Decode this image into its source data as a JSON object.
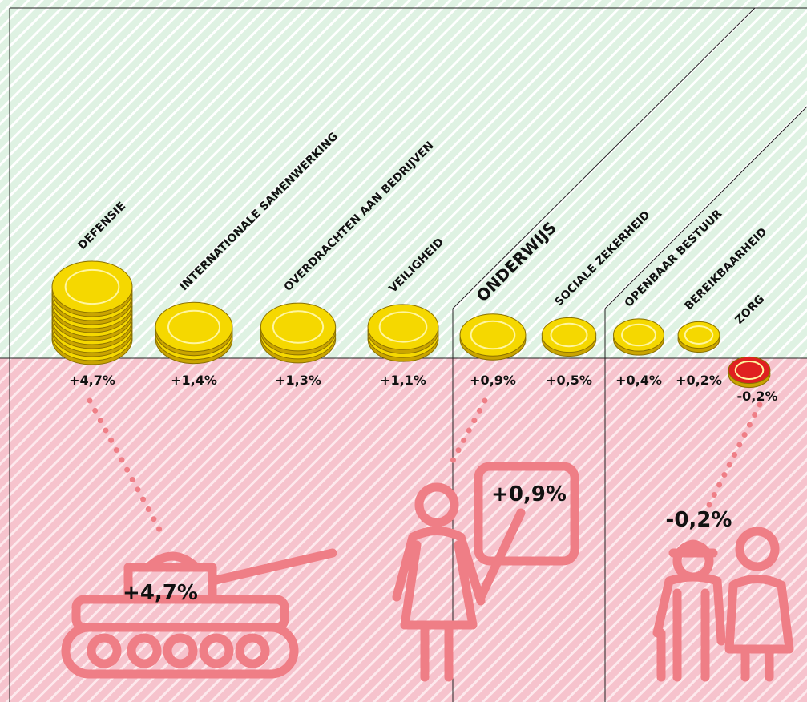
{
  "chart_data": {
    "type": "coin",
    "categories": [
      "DEFENSIE",
      "INTERNATIONALE SAMENWERKING",
      "OVERDRACHTEN AAN BEDRIJVEN",
      "VEILIGHEID",
      "ONDERWIJS",
      "SOCIALE ZEKERHEID",
      "OPENBAAR BESTUUR",
      "BEREIKBAARHEID",
      "ZORG"
    ],
    "values": [
      4.7,
      1.4,
      1.3,
      1.1,
      0.9,
      0.5,
      0.4,
      0.2,
      -0.2
    ],
    "value_labels": [
      "+4,7%",
      "+1,4%",
      "+1,3%",
      "+1,1%",
      "+0,9%",
      "+0,5%",
      "+0,4%",
      "+0,2%",
      "-0,2%"
    ],
    "color": "#f5d800",
    "negative_color": "#e02020"
  }
}
